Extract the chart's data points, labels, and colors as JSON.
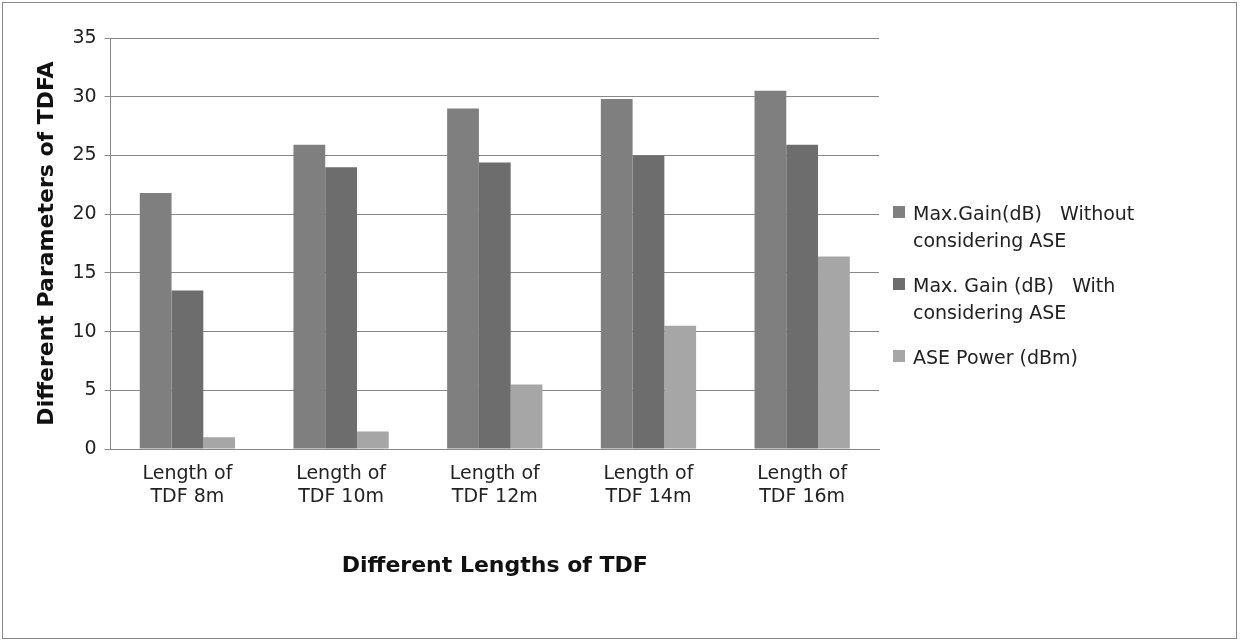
{
  "chart_data": {
    "type": "bar",
    "xlabel": "Different Lengths of TDF",
    "ylabel": "Different Parameters of TDFA",
    "categories": [
      "Length of TDF 8m",
      "Length of TDF 10m",
      "Length of TDF 12m",
      "Length of TDF 14m",
      "Length of TDF 16m"
    ],
    "series": [
      {
        "name": "Max.Gain(dB)   Without considering ASE",
        "color": "#7f7f7f",
        "values": [
          21.8,
          25.9,
          29,
          29.8,
          30.5
        ]
      },
      {
        "name": "Max. Gain (dB)   With considering ASE",
        "color": "#6d6d6d",
        "values": [
          13.5,
          24,
          24.4,
          25,
          25.9
        ]
      },
      {
        "name": "ASE Power (dBm)",
        "color": "#a6a6a6",
        "values": [
          1,
          1.5,
          5.5,
          10.5,
          16.4
        ]
      }
    ],
    "ylim": [
      0,
      35
    ],
    "yticks": [
      0,
      5,
      10,
      15,
      20,
      25,
      30,
      35
    ],
    "grid": "y",
    "legend": "right"
  }
}
